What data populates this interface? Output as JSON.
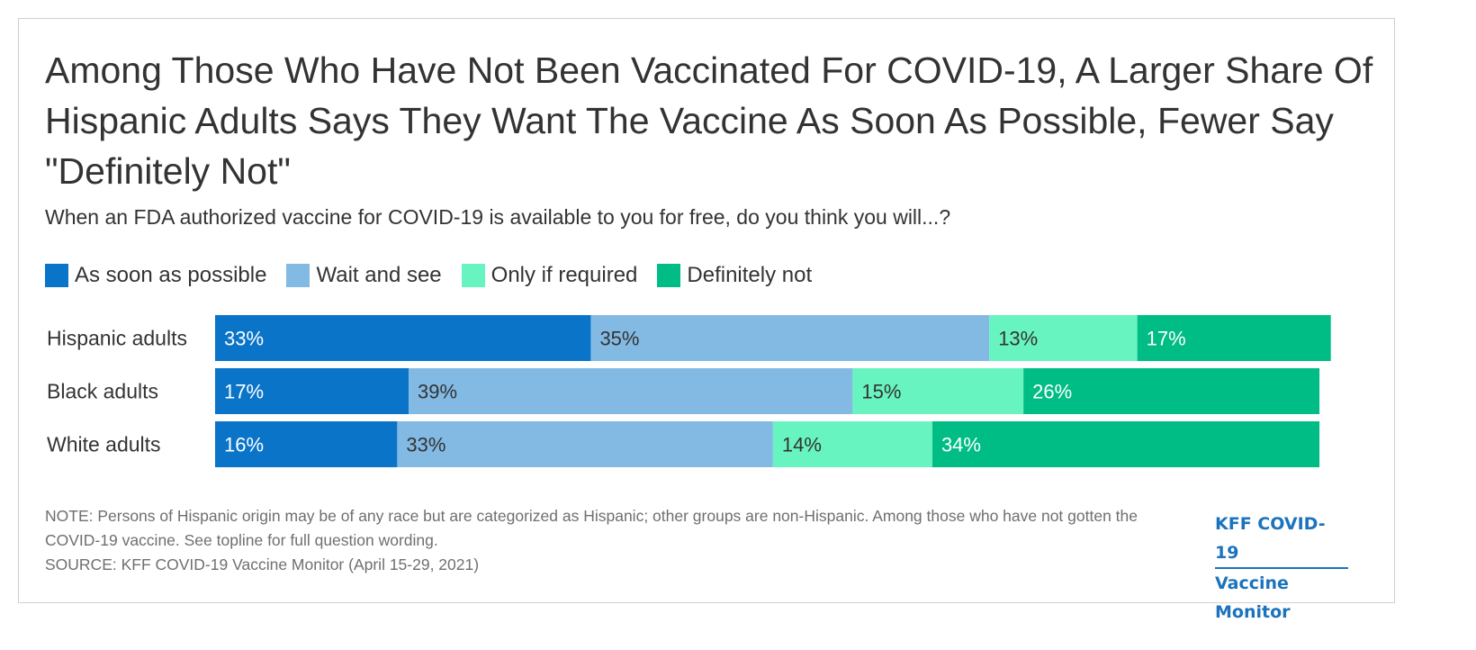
{
  "title": "Among Those Who Have Not Been Vaccinated For COVID-19, A Larger Share Of Hispanic Adults Says They Want The Vaccine As Soon As Possible, Fewer Say \"Definitely Not\"",
  "subtitle": "When an FDA authorized vaccine for COVID-19 is available to you for free, do you think you will...?",
  "legend": [
    {
      "label": "As soon as possible",
      "color": "#0a74c9"
    },
    {
      "label": "Wait and see",
      "color": "#82bae4"
    },
    {
      "label": "Only if required",
      "color": "#68f4c0"
    },
    {
      "label": "Definitely not",
      "color": "#00bd85"
    }
  ],
  "note": "NOTE: Persons of Hispanic origin may be of any race but are categorized as Hispanic; other groups are non-Hispanic. Among those who have not gotten the COVID-19 vaccine. See topline for full question wording.",
  "source": "SOURCE: KFF COVID-19 Vaccine Monitor (April 15-29, 2021)",
  "logo": {
    "line1": "KFF COVID-19",
    "line2": "Vaccine Monitor"
  },
  "chart_data": {
    "type": "bar",
    "orientation": "horizontal",
    "stacked": true,
    "categories": [
      "Hispanic adults",
      "Black adults",
      "White adults"
    ],
    "series": [
      {
        "name": "As soon as possible",
        "values": [
          33,
          17,
          16
        ],
        "color": "#0a74c9",
        "label_color": "#ffffff"
      },
      {
        "name": "Wait and see",
        "values": [
          35,
          39,
          33
        ],
        "color": "#82bae4",
        "label_color": "#333333"
      },
      {
        "name": "Only if required",
        "values": [
          13,
          15,
          14
        ],
        "color": "#68f4c0",
        "label_color": "#333333"
      },
      {
        "name": "Definitely not",
        "values": [
          17,
          26,
          34
        ],
        "color": "#00bd85",
        "label_color": "#ffffff"
      }
    ],
    "value_suffix": "%",
    "xlim": [
      0,
      100
    ],
    "legend_position": "top-left",
    "grid": false
  }
}
